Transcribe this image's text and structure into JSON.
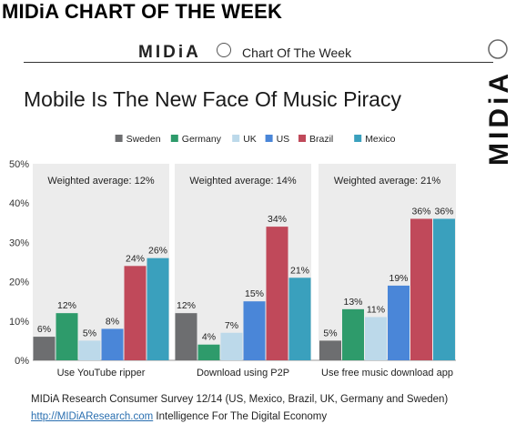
{
  "banner": "MIDiA CHART OF THE WEEK",
  "header": {
    "logo_text": "MIDiA",
    "subtitle": "Chart Of The Week"
  },
  "side_logo_text": "MIDiA",
  "chart_data": {
    "type": "bar",
    "title": "Mobile Is The New Face Of Music Piracy",
    "categories": [
      "Use YouTube ripper",
      "Download using P2P",
      "Use free music download app"
    ],
    "panel_notes": [
      "Weighted average: 12%",
      "Weighted average: 14%",
      "Weighted average: 21%"
    ],
    "series": [
      {
        "name": "Sweden",
        "color": "#6d6e70",
        "values": [
          6,
          12,
          5
        ]
      },
      {
        "name": "Germany",
        "color": "#2e9b6b",
        "values": [
          12,
          4,
          13
        ]
      },
      {
        "name": "UK",
        "color": "#bcd9ea",
        "values": [
          5,
          7,
          11
        ]
      },
      {
        "name": "US",
        "color": "#4a86d8",
        "values": [
          8,
          15,
          19
        ]
      },
      {
        "name": "Brazil",
        "color": "#c0495a",
        "values": [
          24,
          34,
          36
        ]
      },
      {
        "name": "Mexico",
        "color": "#3aa0bd",
        "values": [
          26,
          21,
          36
        ]
      }
    ],
    "value_labels": [
      [
        "6%",
        "12%",
        "5%",
        "8%",
        "24%",
        "26%"
      ],
      [
        "12%",
        "4%",
        "7%",
        "15%",
        "34%",
        "21%"
      ],
      [
        "5%",
        "13%",
        "11%",
        "19%",
        "36%",
        "36%"
      ]
    ],
    "ylim": [
      0,
      50
    ],
    "yticks": [
      0,
      10,
      20,
      30,
      40,
      50
    ],
    "ytick_labels": [
      "0%",
      "10%",
      "20%",
      "30%",
      "40%",
      "50%"
    ],
    "legend_position": "top-center",
    "panel_background": "#ececec"
  },
  "footer": {
    "source": "MIDiA Research Consumer Survey 12/14 (US, Mexico, Brazil, UK, Germany and Sweden)",
    "link": "http://MIDiAResearch.com",
    "tagline": "Intelligence For The Digital Economy"
  }
}
